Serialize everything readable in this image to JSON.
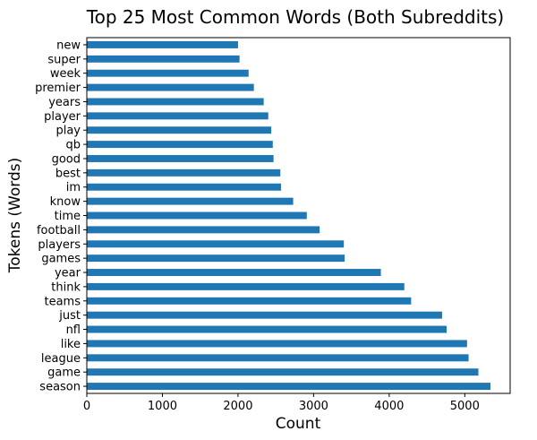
{
  "chart_data": {
    "type": "bar",
    "orientation": "horizontal",
    "title": "Top 25 Most Common Words (Both Subreddits)",
    "xlabel": "Count",
    "ylabel": "Tokens (Words)",
    "xlim": [
      0,
      5600
    ],
    "xticks": [
      0,
      1000,
      2000,
      3000,
      4000,
      5000
    ],
    "xtick_labels": [
      "0",
      "1000",
      "2000",
      "3000",
      "4000",
      "5000"
    ],
    "grid": false,
    "legend": "none",
    "bar_color": "#1f77b4",
    "categories": [
      "new",
      "super",
      "week",
      "premier",
      "years",
      "player",
      "play",
      "qb",
      "good",
      "best",
      "im",
      "know",
      "time",
      "football",
      "players",
      "games",
      "year",
      "think",
      "teams",
      "just",
      "nfl",
      "like",
      "league",
      "game",
      "season"
    ],
    "values": [
      2000,
      2020,
      2140,
      2210,
      2340,
      2400,
      2440,
      2460,
      2470,
      2560,
      2570,
      2730,
      2910,
      3080,
      3400,
      3410,
      3890,
      4200,
      4290,
      4700,
      4760,
      5030,
      5050,
      5180,
      5340
    ]
  }
}
